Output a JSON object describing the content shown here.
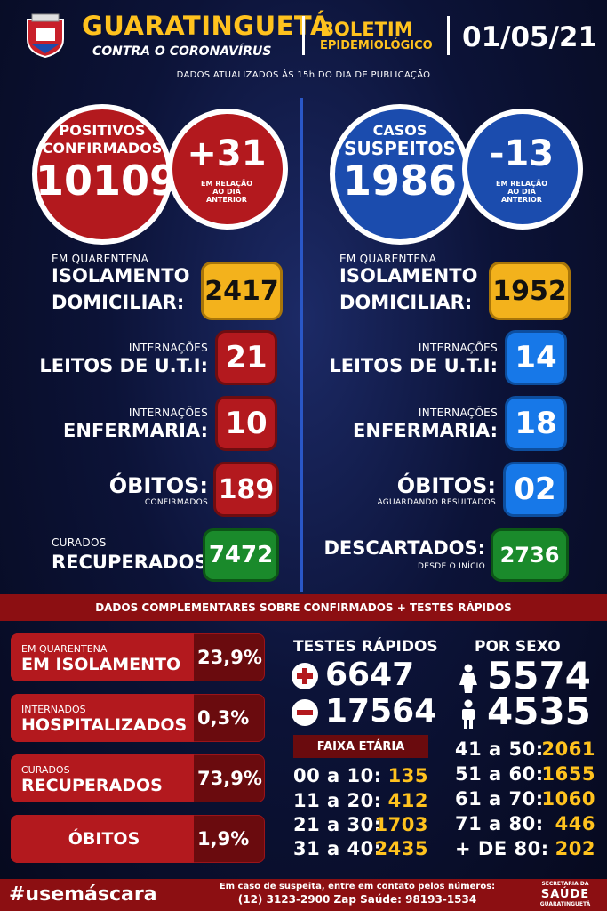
{
  "header": {
    "title": "GUARATINGUETÁ",
    "subtitle": "CONTRA O CORONAVÍRUS",
    "boletim_line1": "BOLETIM",
    "boletim_line2": "EPIDEMIOLÓGICO",
    "date": "01/05/21",
    "updated": "DADOS ATUALIZADOS ÀS 15h DO DIA DE PUBLICAÇÃO"
  },
  "confirmed": {
    "label_line1": "POSITIVOS",
    "label_line2": "CONFIRMADOS",
    "value": "10109",
    "delta": "+31",
    "delta_note_1": "EM RELAÇÃO",
    "delta_note_2": "AO DIA",
    "delta_note_3": "ANTERIOR"
  },
  "suspected": {
    "label_line1": "CASOS",
    "label_line2": "SUSPEITOS",
    "value": "1986",
    "delta": "-13",
    "delta_note_1": "EM RELAÇÃO",
    "delta_note_2": "AO DIA",
    "delta_note_3": "ANTERIOR"
  },
  "left_stats": {
    "isolation_small": "EM QUARENTENA",
    "isolation_line1": "ISOLAMENTO",
    "isolation_line2": "DOMICILIAR:",
    "isolation_value": "2417",
    "uti_small": "INTERNAÇÕES",
    "uti_label": "LEITOS DE U.T.I:",
    "uti_value": "21",
    "ward_small": "INTERNAÇÕES",
    "ward_label": "ENFERMARIA:",
    "ward_value": "10",
    "deaths_label": "ÓBITOS:",
    "deaths_small": "CONFIRMADOS",
    "deaths_value": "189",
    "recovered_small": "CURADOS",
    "recovered_label": "RECUPERADOS:",
    "recovered_value": "7472"
  },
  "right_stats": {
    "isolation_small": "EM QUARENTENA",
    "isolation_line1": "ISOLAMENTO",
    "isolation_line2": "DOMICILIAR:",
    "isolation_value": "1952",
    "uti_small": "INTERNAÇÕES",
    "uti_label": "LEITOS DE U.T.I:",
    "uti_value": "14",
    "ward_small": "INTERNAÇÕES",
    "ward_label": "ENFERMARIA:",
    "ward_value": "18",
    "deaths_label": "ÓBITOS:",
    "deaths_small": "AGUARDANDO RESULTADOS",
    "deaths_value": "02",
    "discarded_label": "DESCARTADOS:",
    "discarded_small": "DESDE O INÍCIO",
    "discarded_value": "2736"
  },
  "complementary": {
    "band": "DADOS COMPLEMENTARES SOBRE CONFIRMADOS + TESTES RÁPIDOS",
    "rows": [
      {
        "small": "EM QUARENTENA",
        "label": "EM ISOLAMENTO",
        "value": "23,9%"
      },
      {
        "small": "INTERNADOS",
        "label": "HOSPITALIZADOS",
        "value": "0,3%"
      },
      {
        "small": "CURADOS",
        "label": "RECUPERADOS",
        "value": "73,9%"
      },
      {
        "small": "",
        "label": "ÓBITOS",
        "value": "1,9%"
      }
    ]
  },
  "rapid_tests": {
    "title": "TESTES RÁPIDOS",
    "positive": "6647",
    "negative": "17564",
    "age_title": "FAIXA ETÁRIA",
    "ages": [
      {
        "range": "00 a 10:",
        "value": "135"
      },
      {
        "range": "11 a 20:",
        "value": "412"
      },
      {
        "range": "21 a 30:",
        "value": "1703"
      },
      {
        "range": "31 a 40:",
        "value": "2435"
      }
    ]
  },
  "by_sex": {
    "title": "POR SEXO",
    "female": "5574",
    "male": "4535",
    "ages": [
      {
        "range": "41 a 50:",
        "value": "2061"
      },
      {
        "range": "51 a 60:",
        "value": "1655"
      },
      {
        "range": "61 a 70:",
        "value": "1060"
      },
      {
        "range": "71 a 80:",
        "value": "446"
      },
      {
        "range": "+ DE 80:",
        "value": "202"
      }
    ]
  },
  "footer": {
    "hashtag": "#usemáscara",
    "contact_line1": "Em caso de suspeita, entre em contato pelos números:",
    "contact_line2": "(12) 3123-2900 Zap Saúde: 98193-1534",
    "logo_line1": "SECRETARIA DA",
    "logo_line2": "SAÚDE",
    "logo_line3": "GUARATINGUETÁ"
  },
  "colors": {
    "red": "#b3191e",
    "blue": "#1b4cae",
    "yellow": "#f3b21c",
    "green": "#1a8a2b",
    "gold_text": "#ffc21e"
  }
}
